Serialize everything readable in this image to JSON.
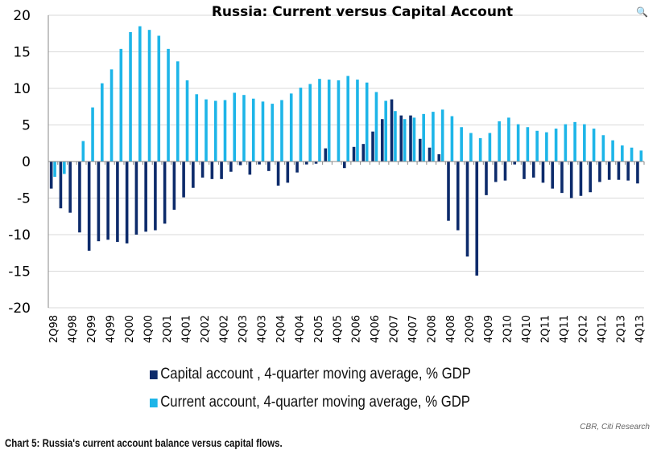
{
  "chart_data": {
    "type": "bar",
    "title": "Russia: Current versus Capital Account",
    "xlabel": "",
    "ylabel": "",
    "ylim": [
      -20,
      20
    ],
    "yticks": [
      20,
      15,
      10,
      5,
      0,
      -5,
      -10,
      -15,
      -20
    ],
    "grid": true,
    "legend_position": "bottom",
    "categories": [
      "2Q98",
      "3Q98",
      "4Q98",
      "1Q99",
      "2Q99",
      "3Q99",
      "4Q99",
      "1Q00",
      "2Q00",
      "3Q00",
      "4Q00",
      "1Q01",
      "2Q01",
      "3Q01",
      "4Q01",
      "1Q02",
      "2Q02",
      "3Q02",
      "4Q02",
      "1Q03",
      "2Q03",
      "3Q03",
      "4Q03",
      "1Q04",
      "2Q04",
      "3Q04",
      "4Q04",
      "1Q05",
      "2Q05",
      "3Q05",
      "4Q05",
      "1Q06",
      "2Q06",
      "3Q06",
      "4Q06",
      "1Q07",
      "2Q07",
      "3Q07",
      "4Q07",
      "1Q08",
      "2Q08",
      "3Q08",
      "4Q08",
      "1Q09",
      "2Q09",
      "3Q09",
      "4Q09",
      "1Q10",
      "2Q10",
      "3Q10",
      "4Q10",
      "1Q11",
      "2Q11",
      "3Q11",
      "4Q11",
      "1Q12",
      "2Q12",
      "3Q12",
      "4Q12",
      "1Q13",
      "2Q13",
      "3Q13",
      "4Q13"
    ],
    "xtick_labels": [
      "2Q98",
      "4Q98",
      "2Q99",
      "4Q99",
      "2Q00",
      "4Q00",
      "2Q01",
      "4Q01",
      "2Q02",
      "4Q02",
      "2Q03",
      "4Q03",
      "2Q04",
      "4Q04",
      "2Q05",
      "4Q05",
      "2Q06",
      "4Q06",
      "2Q07",
      "4Q07",
      "2Q08",
      "4Q08",
      "2Q09",
      "4Q09",
      "2Q10",
      "4Q10",
      "2Q11",
      "4Q11",
      "2Q12",
      "4Q12",
      "2Q13",
      "4Q13"
    ],
    "series": [
      {
        "name": "Capital account  , 4-quarter moving average, % GDP",
        "color": "#0d2b6b",
        "values": [
          -3.7,
          -6.4,
          -7.0,
          -9.7,
          -12.2,
          -10.9,
          -10.7,
          -11.0,
          -11.2,
          -10.0,
          -9.6,
          -9.4,
          -8.5,
          -6.6,
          -4.9,
          -3.6,
          -2.2,
          -2.4,
          -2.4,
          -1.4,
          -0.5,
          -1.8,
          -0.4,
          -1.3,
          -3.3,
          -2.9,
          -1.5,
          -0.4,
          -0.3,
          1.8,
          0.0,
          -0.9,
          2.0,
          2.4,
          4.1,
          5.8,
          8.5,
          6.3,
          6.3,
          3.1,
          1.9,
          1.0,
          -8.1,
          -9.4,
          -13.0,
          -15.6,
          -4.6,
          -2.8,
          -2.6,
          -0.4,
          -2.4,
          -2.2,
          -2.9,
          -3.7,
          -4.3,
          -5.0,
          -4.7,
          -4.2,
          -2.8,
          -2.5,
          -2.5,
          -2.6,
          -3.0
        ]
      },
      {
        "name": "Current account, 4-quarter moving average, % GDP",
        "color": "#1db5e8",
        "values": [
          -2.1,
          -1.7,
          0.0,
          2.8,
          7.4,
          10.7,
          12.6,
          15.4,
          17.7,
          18.5,
          18.0,
          17.2,
          15.4,
          13.7,
          11.1,
          9.2,
          8.5,
          8.3,
          8.4,
          9.4,
          9.1,
          8.6,
          8.2,
          7.9,
          8.4,
          9.3,
          10.1,
          10.6,
          11.3,
          11.2,
          11.1,
          11.7,
          11.2,
          10.8,
          9.5,
          8.3,
          6.9,
          5.8,
          6.0,
          6.5,
          6.8,
          7.1,
          6.2,
          4.7,
          3.9,
          3.2,
          3.9,
          5.5,
          6.0,
          5.1,
          4.7,
          4.2,
          4.0,
          4.5,
          5.1,
          5.4,
          5.1,
          4.5,
          3.6,
          2.9,
          2.2,
          1.9,
          1.5
        ]
      }
    ]
  },
  "source": "CBR, Citi Research",
  "caption": "Chart 5: Russia's current account balance versus capital flows."
}
